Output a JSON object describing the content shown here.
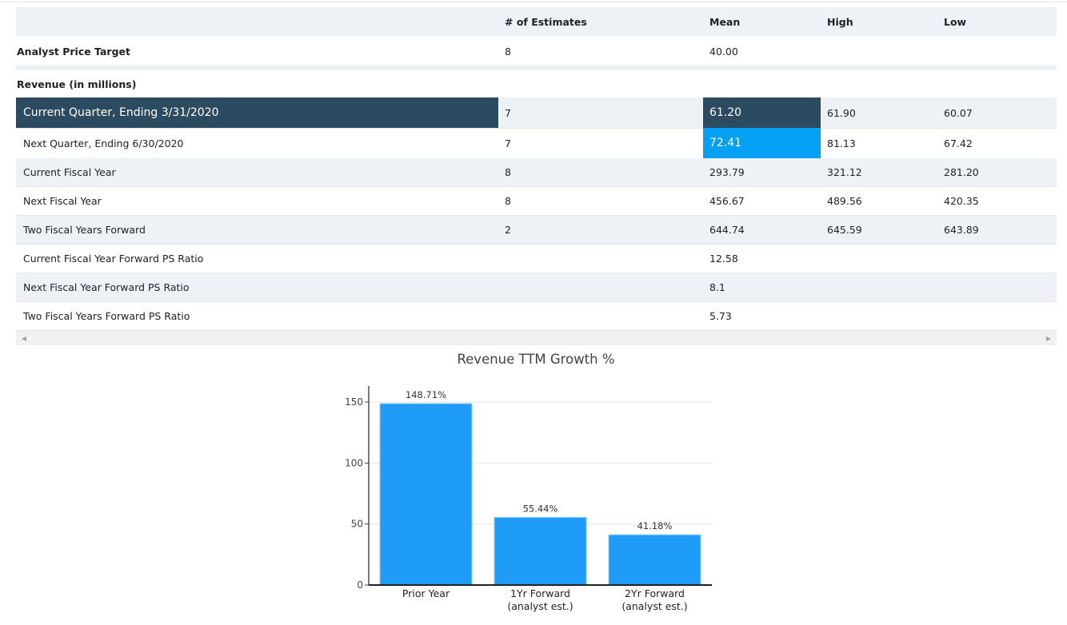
{
  "table": {
    "headers": [
      "",
      "# of Estimates",
      "Mean",
      "High",
      "Low"
    ],
    "analyst_price_target": {
      "label": "Analyst Price Target",
      "estimates": "8",
      "mean": "40.00",
      "high": "",
      "low": ""
    },
    "section_label": "Revenue (in millions)",
    "rows": [
      {
        "label": "Current Quarter, Ending 3/31/2020",
        "estimates": "7",
        "mean": "61.20",
        "high": "61.90",
        "low": "60.07"
      },
      {
        "label": "Next Quarter, Ending 6/30/2020",
        "estimates": "7",
        "mean": "72.41",
        "high": "81.13",
        "low": "67.42"
      },
      {
        "label": "Current Fiscal Year",
        "estimates": "8",
        "mean": "293.79",
        "high": "321.12",
        "low": "281.20"
      },
      {
        "label": "Next Fiscal Year",
        "estimates": "8",
        "mean": "456.67",
        "high": "489.56",
        "low": "420.35"
      },
      {
        "label": "Two Fiscal Years Forward",
        "estimates": "2",
        "mean": "644.74",
        "high": "645.59",
        "low": "643.89"
      },
      {
        "label": "Current Fiscal Year Forward PS Ratio",
        "estimates": "",
        "mean": "12.58",
        "high": "",
        "low": ""
      },
      {
        "label": "Next Fiscal Year Forward PS Ratio",
        "estimates": "",
        "mean": "8.1",
        "high": "",
        "low": ""
      },
      {
        "label": "Two Fiscal Years Forward PS Ratio",
        "estimates": "",
        "mean": "5.73",
        "high": "",
        "low": ""
      }
    ]
  },
  "scrollbar": {
    "left_arrow": "◀",
    "right_arrow": "▶"
  },
  "colors": {
    "dark_highlight": "#2c4a60",
    "blue_highlight": "#03a0f4",
    "bar": "#1e9cf8"
  },
  "chart_data": {
    "type": "bar",
    "title": "Revenue TTM Growth %",
    "categories": [
      [
        "Prior Year"
      ],
      [
        "1Yr Forward",
        "(analyst est.)"
      ],
      [
        "2Yr Forward",
        "(analyst est.)"
      ]
    ],
    "values": [
      148.71,
      55.44,
      41.18
    ],
    "data_labels": [
      "148.71%",
      "55.44%",
      "41.18%"
    ],
    "ylim": [
      0,
      160
    ],
    "yticks": [
      0,
      50,
      100,
      150
    ],
    "grid": true
  }
}
